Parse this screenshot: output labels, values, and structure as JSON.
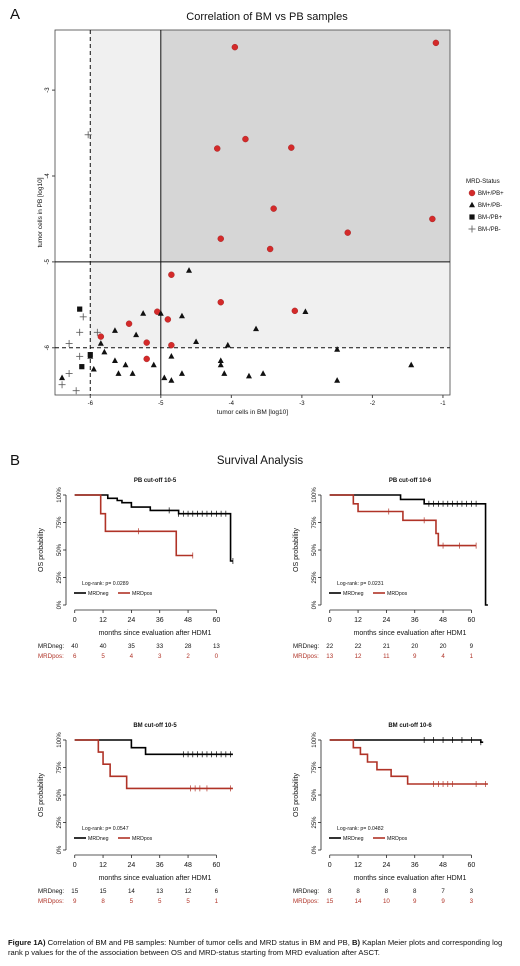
{
  "panel_a": {
    "letter": "A",
    "title": "Correlation of BM vs PB samples",
    "xlabel": "tumor cells in BM [log10]",
    "ylabel": "tumor cells in PB [log10]",
    "legend_title": "MRD-Status",
    "legend_items": [
      "BM+/PB+",
      "BM+/PB-",
      "BM-/PB+",
      "BM-/PB-"
    ],
    "xticks": [
      "-6",
      "-5",
      "-4",
      "-3",
      "-2",
      "-1"
    ],
    "yticks": [
      "-3",
      "-4",
      "-5",
      "-6"
    ]
  },
  "panel_b": {
    "letter": "B",
    "title": "Survival Analysis",
    "ylabel": "OS probability",
    "xlabel": "months since evaluation after HDM1",
    "legend_neg": "MRDneg",
    "legend_pos": "MRDpos",
    "risk_neg_label": "MRDneg:",
    "risk_pos_label": "MRDpos:"
  },
  "colors": {
    "pos": "#b03327",
    "neg": "#000000",
    "shade_light": "#f0f0f0",
    "shade_dark": "#d6d6d6"
  },
  "chart_data": [
    {
      "type": "scatter",
      "title": "Correlation of BM vs PB samples",
      "xlabel": "tumor cells in BM [log10]",
      "ylabel": "tumor cells in PB [log10]",
      "xlim": [
        -6.5,
        -0.9
      ],
      "ylim": [
        -6.55,
        -2.3
      ],
      "threshold_lines": {
        "x_solid": -5,
        "x_dashed": -6,
        "y_solid": -5,
        "y_dashed": -6
      },
      "series": [
        {
          "name": "BM+/PB+",
          "marker": "circle",
          "points": [
            [
              -1.1,
              -2.45
            ],
            [
              -3.95,
              -2.5
            ],
            [
              -4.2,
              -3.68
            ],
            [
              -3.8,
              -3.57
            ],
            [
              -3.15,
              -3.67
            ],
            [
              -3.4,
              -4.38
            ],
            [
              -4.15,
              -4.73
            ],
            [
              -3.45,
              -4.85
            ],
            [
              -2.35,
              -4.66
            ],
            [
              -1.15,
              -4.5
            ],
            [
              -4.85,
              -5.15
            ],
            [
              -4.15,
              -5.47
            ],
            [
              -3.1,
              -5.57
            ],
            [
              -5.05,
              -5.58
            ],
            [
              -4.9,
              -5.67
            ],
            [
              -5.45,
              -5.72
            ],
            [
              -5.2,
              -5.94
            ],
            [
              -4.85,
              -5.97
            ],
            [
              -5.85,
              -5.87
            ],
            [
              -5.2,
              -6.13
            ]
          ]
        },
        {
          "name": "BM+/PB-",
          "marker": "triangle",
          "points": [
            [
              -4.6,
              -5.1
            ],
            [
              -5.25,
              -5.6
            ],
            [
              -5.0,
              -5.6
            ],
            [
              -4.7,
              -5.63
            ],
            [
              -2.95,
              -5.58
            ],
            [
              -3.65,
              -5.78
            ],
            [
              -5.65,
              -5.8
            ],
            [
              -5.35,
              -5.85
            ],
            [
              -4.5,
              -5.93
            ],
            [
              -5.85,
              -5.95
            ],
            [
              -4.05,
              -5.97
            ],
            [
              -5.8,
              -6.05
            ],
            [
              -6.0,
              -6.1
            ],
            [
              -5.65,
              -6.15
            ],
            [
              -5.5,
              -6.2
            ],
            [
              -4.85,
              -6.1
            ],
            [
              -4.15,
              -6.15
            ],
            [
              -5.1,
              -6.2
            ],
            [
              -4.15,
              -6.2
            ],
            [
              -5.95,
              -6.25
            ],
            [
              -5.4,
              -6.3
            ],
            [
              -5.6,
              -6.3
            ],
            [
              -4.7,
              -6.3
            ],
            [
              -4.95,
              -6.35
            ],
            [
              -4.1,
              -6.3
            ],
            [
              -3.75,
              -6.33
            ],
            [
              -3.55,
              -6.3
            ],
            [
              -2.5,
              -6.02
            ],
            [
              -1.45,
              -6.2
            ],
            [
              -6.4,
              -6.35
            ],
            [
              -2.5,
              -6.38
            ],
            [
              -4.85,
              -6.38
            ]
          ]
        },
        {
          "name": "BM-/PB+",
          "marker": "square",
          "points": [
            [
              -6.15,
              -5.55
            ],
            [
              -6.0,
              -6.08
            ],
            [
              -6.12,
              -6.22
            ]
          ]
        },
        {
          "name": "BM-/PB-",
          "marker": "plus",
          "points": [
            [
              -6.03,
              -3.52
            ],
            [
              -6.1,
              -5.64
            ],
            [
              -5.9,
              -5.82
            ],
            [
              -6.15,
              -5.82
            ],
            [
              -6.3,
              -5.95
            ],
            [
              -6.15,
              -6.1
            ],
            [
              -6.3,
              -6.3
            ],
            [
              -6.4,
              -6.43
            ],
            [
              -6.2,
              -6.5
            ]
          ]
        }
      ]
    },
    {
      "type": "line",
      "title": "PB cut-off 10-5",
      "xticks": [
        0,
        12,
        24,
        36,
        48,
        60
      ],
      "yticks": [
        "0%",
        "25%",
        "50%",
        "75%",
        "100%"
      ],
      "xlim": [
        -2,
        70
      ],
      "annotation": "Log-rank: p= 0.0289",
      "series": [
        {
          "name": "MRDneg",
          "steps": [
            [
              0,
              1.0
            ],
            [
              14,
              0.97
            ],
            [
              18,
              0.95
            ],
            [
              20,
              0.93
            ],
            [
              24,
              0.89
            ],
            [
              32,
              0.86
            ],
            [
              44,
              0.83
            ],
            [
              66,
              0.4
            ],
            [
              67,
              0.4
            ]
          ],
          "censors": [
            [
              40,
              0.86
            ],
            [
              44,
              0.83
            ],
            [
              46,
              0.83
            ],
            [
              48,
              0.83
            ],
            [
              50,
              0.83
            ],
            [
              52,
              0.83
            ],
            [
              54,
              0.83
            ],
            [
              56,
              0.83
            ],
            [
              58,
              0.83
            ],
            [
              60,
              0.83
            ],
            [
              62,
              0.83
            ],
            [
              64,
              0.83
            ],
            [
              67,
              0.4
            ]
          ]
        },
        {
          "name": "MRDpos",
          "steps": [
            [
              0,
              1.0
            ],
            [
              11,
              0.83
            ],
            [
              13,
              0.67
            ],
            [
              43,
              0.45
            ],
            [
              50,
              0.45
            ]
          ],
          "censors": [
            [
              27,
              0.67
            ],
            [
              50,
              0.45
            ]
          ]
        }
      ],
      "risk_table": {
        "MRDneg": [
          40,
          40,
          35,
          33,
          28,
          13
        ],
        "MRDpos": [
          6,
          5,
          4,
          3,
          2,
          0
        ]
      }
    },
    {
      "type": "line",
      "title": "PB cut-off 10-6",
      "xticks": [
        0,
        12,
        24,
        36,
        48,
        60
      ],
      "yticks": [
        "0%",
        "25%",
        "50%",
        "75%",
        "100%"
      ],
      "xlim": [
        -2,
        70
      ],
      "annotation": "Log-rank: p= 0.0231",
      "series": [
        {
          "name": "MRDneg",
          "steps": [
            [
              0,
              1.0
            ],
            [
              30,
              0.96
            ],
            [
              40,
              0.92
            ],
            [
              66,
              0.0
            ],
            [
              67,
              0.0
            ]
          ],
          "censors": [
            [
              42,
              0.92
            ],
            [
              44,
              0.92
            ],
            [
              46,
              0.92
            ],
            [
              48,
              0.92
            ],
            [
              50,
              0.92
            ],
            [
              52,
              0.92
            ],
            [
              54,
              0.92
            ],
            [
              56,
              0.92
            ],
            [
              58,
              0.92
            ],
            [
              60,
              0.92
            ],
            [
              62,
              0.92
            ]
          ]
        },
        {
          "name": "MRDpos",
          "steps": [
            [
              0,
              1.0
            ],
            [
              10,
              0.92
            ],
            [
              12,
              0.85
            ],
            [
              31,
              0.77
            ],
            [
              45,
              0.65
            ],
            [
              46,
              0.54
            ],
            [
              62,
              0.54
            ]
          ],
          "censors": [
            [
              25,
              0.85
            ],
            [
              40,
              0.77
            ],
            [
              48,
              0.54
            ],
            [
              55,
              0.54
            ],
            [
              62,
              0.54
            ]
          ]
        }
      ],
      "risk_table": {
        "MRDneg": [
          22,
          22,
          21,
          20,
          20,
          9
        ],
        "MRDpos": [
          13,
          12,
          11,
          9,
          4,
          1
        ]
      }
    },
    {
      "type": "line",
      "title": "BM cut-off 10-5",
      "xticks": [
        0,
        12,
        24,
        36,
        48,
        60
      ],
      "yticks": [
        "0%",
        "25%",
        "50%",
        "75%",
        "100%"
      ],
      "xlim": [
        -2,
        70
      ],
      "annotation": "Log-rank: p= 0.0547",
      "series": [
        {
          "name": "MRDneg",
          "steps": [
            [
              0,
              1.0
            ],
            [
              24,
              0.93
            ],
            [
              30,
              0.87
            ],
            [
              67,
              0.87
            ]
          ],
          "censors": [
            [
              46,
              0.87
            ],
            [
              48,
              0.87
            ],
            [
              50,
              0.87
            ],
            [
              52,
              0.87
            ],
            [
              54,
              0.87
            ],
            [
              56,
              0.87
            ],
            [
              58,
              0.87
            ],
            [
              60,
              0.87
            ],
            [
              62,
              0.87
            ],
            [
              64,
              0.87
            ],
            [
              66,
              0.87
            ]
          ]
        },
        {
          "name": "MRDpos",
          "steps": [
            [
              0,
              1.0
            ],
            [
              10,
              0.89
            ],
            [
              12,
              0.78
            ],
            [
              15,
              0.67
            ],
            [
              22,
              0.56
            ],
            [
              67,
              0.56
            ]
          ],
          "censors": [
            [
              49,
              0.56
            ],
            [
              51,
              0.56
            ],
            [
              53,
              0.56
            ],
            [
              56,
              0.56
            ],
            [
              66,
              0.56
            ]
          ]
        }
      ],
      "risk_table": {
        "MRDneg": [
          15,
          15,
          14,
          13,
          12,
          6
        ],
        "MRDpos": [
          9,
          8,
          5,
          5,
          5,
          1
        ]
      }
    },
    {
      "type": "line",
      "title": "BM cut-off 10-6",
      "xticks": [
        0,
        12,
        24,
        36,
        48,
        60
      ],
      "yticks": [
        "0%",
        "25%",
        "50%",
        "75%",
        "100%"
      ],
      "xlim": [
        -2,
        70
      ],
      "annotation": "Log-rank: p= 0.0482",
      "series": [
        {
          "name": "MRDneg",
          "steps": [
            [
              0,
              1.0
            ],
            [
              64,
              0.98
            ],
            [
              65,
              0.98
            ]
          ],
          "censors": [
            [
              40,
              1.0
            ],
            [
              44,
              1.0
            ],
            [
              48,
              1.0
            ],
            [
              52,
              1.0
            ],
            [
              56,
              1.0
            ],
            [
              60,
              1.0
            ],
            [
              64,
              0.98
            ]
          ]
        },
        {
          "name": "MRDpos",
          "steps": [
            [
              0,
              1.0
            ],
            [
              10,
              0.93
            ],
            [
              13,
              0.87
            ],
            [
              16,
              0.8
            ],
            [
              20,
              0.73
            ],
            [
              26,
              0.67
            ],
            [
              33,
              0.6
            ],
            [
              67,
              0.6
            ]
          ],
          "censors": [
            [
              44,
              0.6
            ],
            [
              46,
              0.6
            ],
            [
              48,
              0.6
            ],
            [
              50,
              0.6
            ],
            [
              52,
              0.6
            ],
            [
              62,
              0.6
            ],
            [
              66,
              0.6
            ]
          ]
        }
      ],
      "risk_table": {
        "MRDneg": [
          8,
          8,
          8,
          8,
          7,
          3
        ],
        "MRDpos": [
          15,
          14,
          10,
          9,
          9,
          3
        ]
      }
    }
  ],
  "caption": {
    "bold1": "Figure 1A)",
    "text1": " Correlation of BM and PB samples: Number of tumor cells and MRD status in BM and PB, ",
    "bold2": "B)",
    "text2": " Kaplan Meier plots and corresponding log rank p values for the  of the association between OS and MRD-status starting from MRD evaluation after ASCT."
  }
}
